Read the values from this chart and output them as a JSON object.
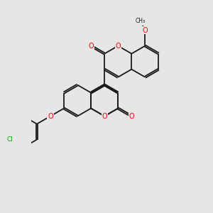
{
  "background_color": "#e6e6e6",
  "bond_color": "#1a1a1a",
  "oxygen_color": "#ff0000",
  "chlorine_color": "#00aa00",
  "figsize": [
    3.0,
    3.0
  ],
  "dpi": 100,
  "xlim": [
    -1.5,
    8.5
  ],
  "ylim": [
    -1.0,
    9.5
  ]
}
